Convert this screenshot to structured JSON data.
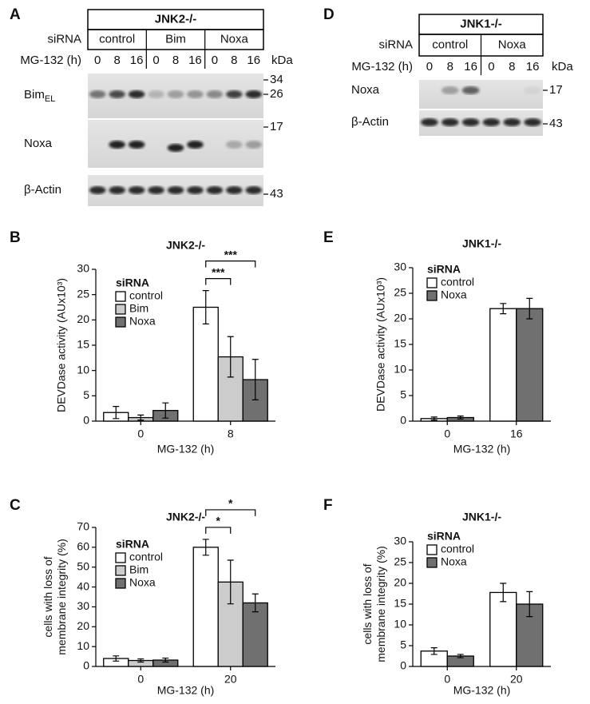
{
  "blots": [
    {
      "panel": "A",
      "title": "JNK2-/-",
      "row_labels": [
        "siRNA",
        "MG-132 (h)"
      ],
      "groups": [
        "control",
        "Bim",
        "Noxa"
      ],
      "times": [
        "0",
        "8",
        "16",
        "0",
        "8",
        "16",
        "0",
        "8",
        "16"
      ],
      "unit": "kDa",
      "rows": [
        {
          "label": "Bim",
          "sub": "EL",
          "markers": [
            34,
            26
          ]
        },
        {
          "label": "Noxa",
          "markers": [
            17
          ]
        },
        {
          "label": "β-Actin",
          "markers": [
            43
          ]
        }
      ]
    },
    {
      "panel": "D",
      "title": "JNK1-/-",
      "row_labels": [
        "siRNA",
        "MG-132 (h)"
      ],
      "groups": [
        "control",
        "Noxa"
      ],
      "times": [
        "0",
        "8",
        "16",
        "0",
        "8",
        "16"
      ],
      "unit": "kDa",
      "rows": [
        {
          "label": "Noxa",
          "markers": [
            17
          ]
        },
        {
          "label": "β-Actin",
          "markers": [
            43
          ]
        }
      ]
    }
  ],
  "chart_data": [
    {
      "panel": "B",
      "type": "bar",
      "title": "JNK2-/-",
      "ylabel": "DEVDase activity (AUx10³)",
      "xlabel": "MG-132 (h)",
      "categories": [
        "0",
        "8"
      ],
      "legend_title": "siRNA",
      "series": [
        {
          "name": "control",
          "color": "#ffffff",
          "values": [
            1.7,
            22.5
          ],
          "errors": [
            1.2,
            3.3
          ]
        },
        {
          "name": "Bim",
          "color": "#cccccc",
          "values": [
            0.7,
            12.7
          ],
          "errors": [
            0.5,
            4
          ]
        },
        {
          "name": "Noxa",
          "color": "#707070",
          "values": [
            2.1,
            8.2
          ],
          "errors": [
            1.5,
            4
          ]
        }
      ],
      "ylim": [
        0,
        30
      ],
      "yticks": [
        0,
        5,
        10,
        15,
        20,
        25,
        30
      ],
      "significance": [
        "***",
        "***"
      ]
    },
    {
      "panel": "C",
      "type": "bar",
      "title": "JNK2-/-",
      "ylabel": [
        "cells with loss of",
        "membrane integrity (%)"
      ],
      "xlabel": "MG-132 (h)",
      "categories": [
        "0",
        "20"
      ],
      "legend_title": "siRNA",
      "series": [
        {
          "name": "control",
          "color": "#ffffff",
          "values": [
            4,
            60
          ],
          "errors": [
            1.3,
            4
          ]
        },
        {
          "name": "Bim",
          "color": "#cccccc",
          "values": [
            3,
            42.5
          ],
          "errors": [
            0.8,
            11
          ]
        },
        {
          "name": "Noxa",
          "color": "#707070",
          "values": [
            3.2,
            32
          ],
          "errors": [
            1,
            4.5
          ]
        }
      ],
      "ylim": [
        0,
        70
      ],
      "yticks": [
        0,
        10,
        20,
        30,
        40,
        50,
        60,
        70
      ],
      "significance": [
        "*",
        "*"
      ]
    },
    {
      "panel": "E",
      "type": "bar",
      "title": "JNK1-/-",
      "ylabel": "DEVDase activity (AUx10³)",
      "xlabel": "MG-132 (h)",
      "categories": [
        "0",
        "16"
      ],
      "legend_title": "siRNA",
      "series": [
        {
          "name": "control",
          "color": "#ffffff",
          "values": [
            0.5,
            22
          ],
          "errors": [
            0.3,
            1
          ]
        },
        {
          "name": "Noxa",
          "color": "#707070",
          "values": [
            0.7,
            22
          ],
          "errors": [
            0.3,
            2
          ]
        }
      ],
      "ylim": [
        0,
        30
      ],
      "yticks": [
        0,
        5,
        10,
        15,
        20,
        25,
        30
      ]
    },
    {
      "panel": "F",
      "type": "bar",
      "title": "JNK1-/-",
      "ylabel": [
        "cells with loss of",
        "membrane integrity (%)"
      ],
      "xlabel": "MG-132 (h)",
      "categories": [
        "0",
        "20"
      ],
      "legend_title": "siRNA",
      "series": [
        {
          "name": "control",
          "color": "#ffffff",
          "values": [
            3.7,
            17.8
          ],
          "errors": [
            0.8,
            2.2
          ]
        },
        {
          "name": "Noxa",
          "color": "#707070",
          "values": [
            2.5,
            15
          ],
          "errors": [
            0.4,
            3
          ]
        }
      ],
      "ylim": [
        0,
        30
      ],
      "yticks": [
        0,
        5,
        10,
        15,
        20,
        25,
        30
      ]
    }
  ]
}
